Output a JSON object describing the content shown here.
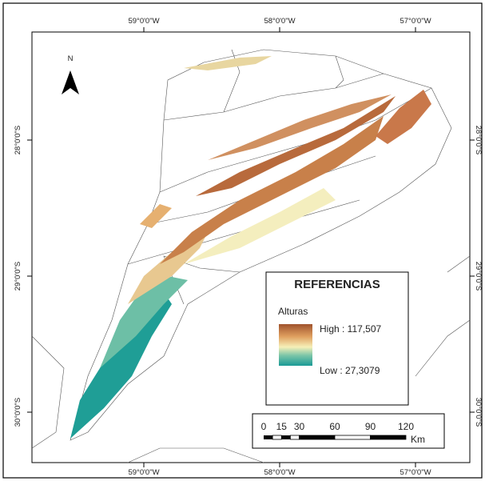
{
  "north": "N",
  "top_labels": [
    "59°0'0\"W",
    "58°0'0\"W",
    "57°0'0\"W"
  ],
  "bottom_labels": [
    "59°0'0\"W",
    "58°0'0\"W",
    "57°0'0\"W"
  ],
  "left_labels": [
    "28°0'0\"S",
    "29°0'0\"S",
    "30°0'0\"S"
  ],
  "right_labels": [
    "28°0'0\"S",
    "29°0'0\"S",
    "30°0'0\"S"
  ],
  "legend": {
    "title": "REFERENCIAS",
    "subtitle": "Alturas",
    "high": "High : 117,507",
    "low": "Low : 27,3079"
  },
  "scale": {
    "ticks": [
      0,
      15,
      30,
      60,
      90,
      120
    ],
    "unit": "Km"
  }
}
